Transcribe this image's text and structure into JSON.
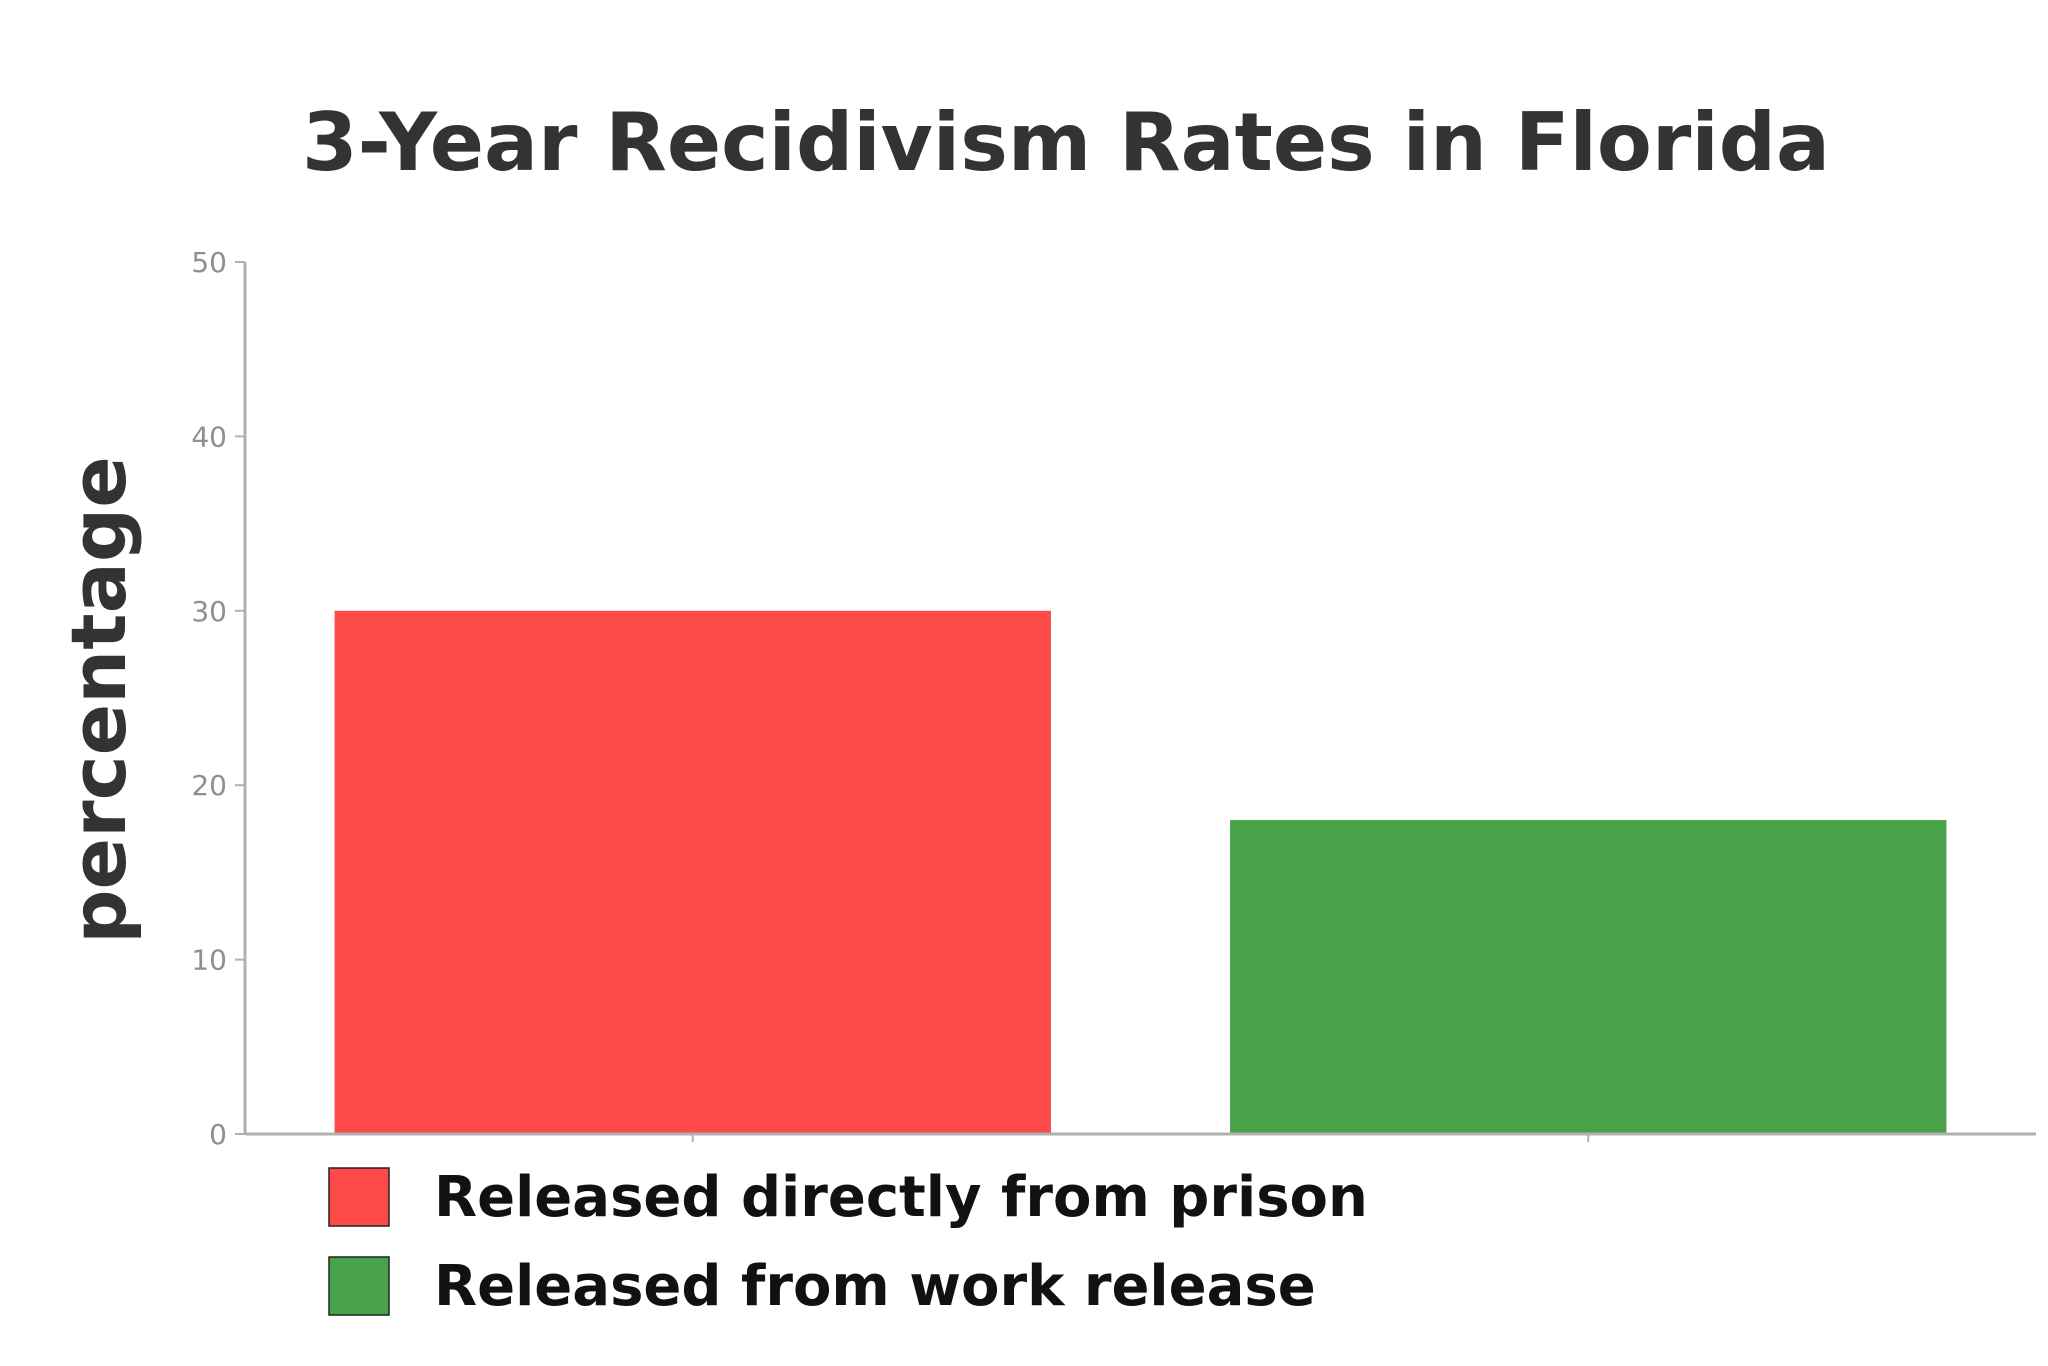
{
  "chart_data": {
    "type": "bar",
    "title": "3-Year Recidivism Rates in Florida",
    "ylabel": "percentage",
    "xlabel": "",
    "ylim": [
      0,
      50
    ],
    "yticks": [
      0,
      10,
      20,
      30,
      40,
      50
    ],
    "grid": false,
    "legend_position": "bottom-left",
    "categories": [
      "Released directly from prison",
      "Released from work release"
    ],
    "values": [
      30,
      18
    ],
    "colors": [
      "#ff4a4a",
      "#48a248"
    ]
  }
}
